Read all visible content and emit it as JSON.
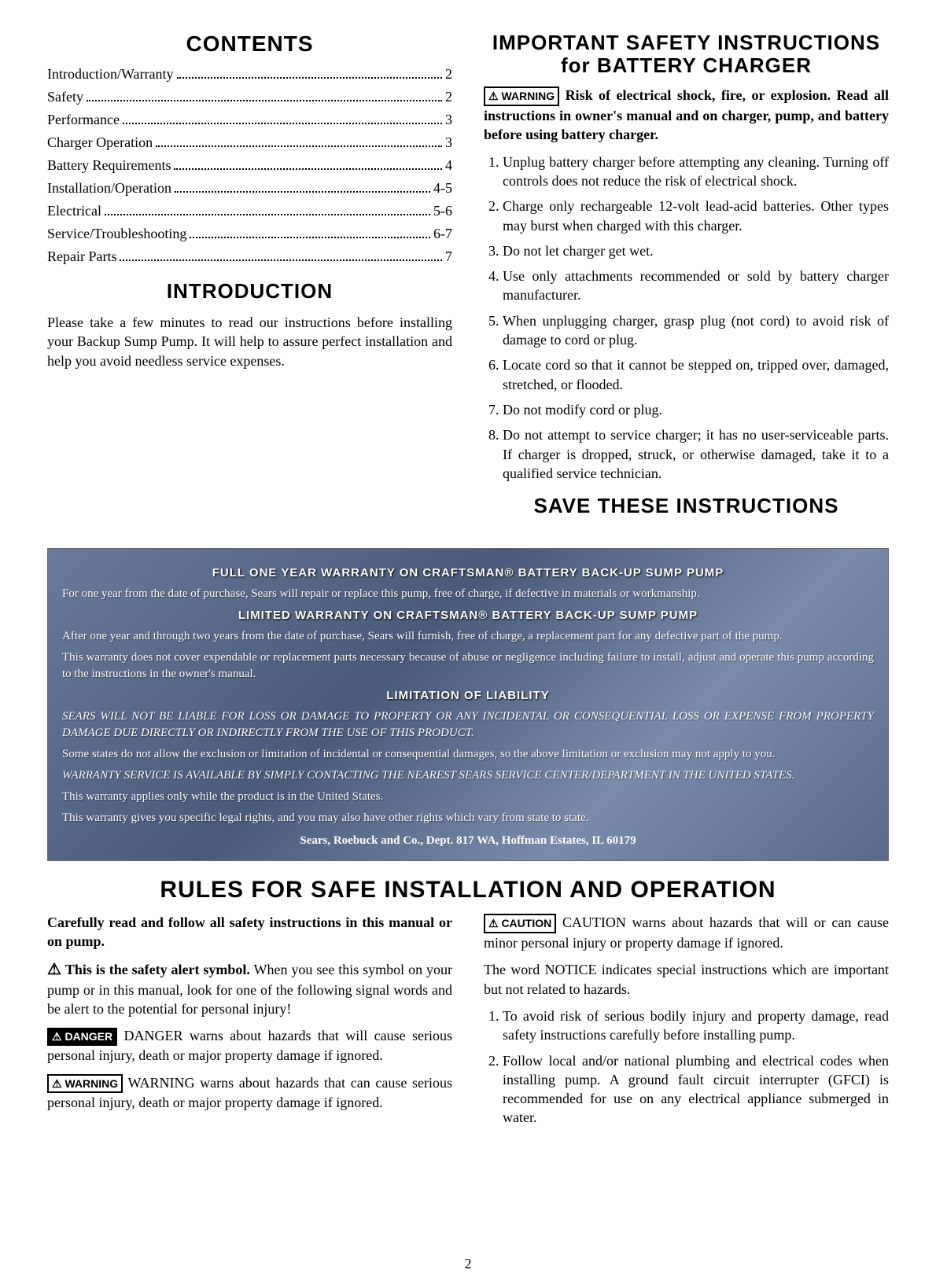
{
  "contents": {
    "title": "CONTENTS",
    "items": [
      {
        "label": "Introduction/Warranty",
        "page": "2"
      },
      {
        "label": "Safety",
        "page": "2"
      },
      {
        "label": "Performance",
        "page": "3"
      },
      {
        "label": "Charger Operation",
        "page": "3"
      },
      {
        "label": "Battery Requirements",
        "page": "4"
      },
      {
        "label": "Installation/Operation",
        "page": "4-5"
      },
      {
        "label": "Electrical",
        "page": "5-6"
      },
      {
        "label": "Service/Troubleshooting",
        "page": "6-7"
      },
      {
        "label": "Repair Parts",
        "page": "7"
      }
    ]
  },
  "introduction": {
    "title": "INTRODUCTION",
    "body": "Please take a few minutes to read our instructions before installing your Backup Sump Pump. It will help to assure perfect installation and help you avoid needless service expenses."
  },
  "safety_instructions": {
    "title": "IMPORTANT SAFETY INSTRUCTIONS for BATTERY CHARGER",
    "warning_badge": "⚠ WARNING",
    "lead": "Risk of electrical shock, fire, or explosion. Read all instructions in owner's manual and on charger, pump, and battery before using battery charger.",
    "items": [
      "Unplug battery charger before attempting any cleaning. Turning off controls does not reduce the risk of electrical shock.",
      "Charge only rechargeable 12-volt lead-acid batteries. Other types may burst when charged with this charger.",
      "Do not let charger get wet.",
      "Use only attachments recommended or sold by battery charger manufacturer.",
      "When unplugging charger, grasp plug (not cord) to avoid risk of damage to cord or plug.",
      "Locate cord so that it cannot be stepped on, tripped over, damaged, stretched, or flooded.",
      "Do not modify cord or plug.",
      "Do not attempt to service charger; it has no user-serviceable parts. If charger is dropped, struck, or otherwise damaged, take it to a qualified service technician."
    ],
    "save": "SAVE THESE INSTRUCTIONS"
  },
  "warranty": {
    "title1": "FULL ONE YEAR WARRANTY ON CRAFTSMAN® BATTERY BACK-UP SUMP PUMP",
    "para1": "For one year from the date of purchase, Sears will repair or replace this pump, free of charge, if defective in materials or workmanship.",
    "title2": "LIMITED WARRANTY ON CRAFTSMAN® BATTERY BACK-UP SUMP PUMP",
    "para2": "After one year and through two years from the date of purchase, Sears will furnish, free of charge, a replacement part for any defective part of the pump.",
    "para3": "This warranty does not cover expendable or replacement parts necessary because of abuse or negligence including failure to install, adjust and operate this pump according to the instructions in the owner's manual.",
    "title3": "LIMITATION OF LIABILITY",
    "para4": "SEARS WILL NOT BE LIABLE FOR LOSS OR DAMAGE TO PROPERTY OR ANY INCIDENTAL OR CONSEQUENTIAL LOSS OR EXPENSE FROM PROPERTY DAMAGE DUE DIRECTLY OR INDIRECTLY FROM THE USE OF THIS PRODUCT.",
    "para5": "Some states do not allow the exclusion or limitation of incidental or consequential damages, so the above limitation or exclusion may not apply to you.",
    "para6": "WARRANTY SERVICE IS AVAILABLE BY SIMPLY CONTACTING THE NEAREST SEARS SERVICE CENTER/DEPARTMENT IN THE UNITED STATES.",
    "para7": "This warranty applies only while the product is in the United States.",
    "para8": "This warranty gives you specific legal rights, and you may also have other rights which vary from state to state.",
    "address": "Sears, Roebuck and Co., Dept. 817 WA, Hoffman Estates, IL 60179"
  },
  "rules": {
    "title": "RULES FOR SAFE INSTALLATION AND OPERATION",
    "left": {
      "p1": "Carefully read and follow all safety instructions in this manual or on pump.",
      "alert_symbol": "⚠",
      "p2a": " This is the safety alert symbol.",
      "p2b": " When you see this symbol on your pump or in this manual, look for one of the following signal words and be alert to the potential for personal injury!",
      "danger_badge": "⚠ DANGER",
      "p3": " DANGER warns about hazards that will cause serious personal injury, death or major property damage if ignored.",
      "warning_badge": "⚠ WARNING",
      "p4": " WARNING warns about hazards that can cause serious personal injury, death or major property damage if ignored."
    },
    "right": {
      "caution_badge": "⚠ CAUTION",
      "p1": " CAUTION warns about hazards that will or can cause minor personal injury or property damage if ignored.",
      "p2": "The word NOTICE indicates special instructions which are important but not related to hazards.",
      "items": [
        "To avoid risk of serious bodily injury and property damage, read safety instructions carefully before installing pump.",
        "Follow local and/or national plumbing and electrical codes when installing pump. A ground fault circuit interrupter (GFCI) is recommended for use on any electrical appliance submerged in water."
      ]
    }
  },
  "page_number": "2",
  "colors": {
    "text": "#000000",
    "bg": "#ffffff",
    "warranty_bg": "#5a6a8a"
  }
}
